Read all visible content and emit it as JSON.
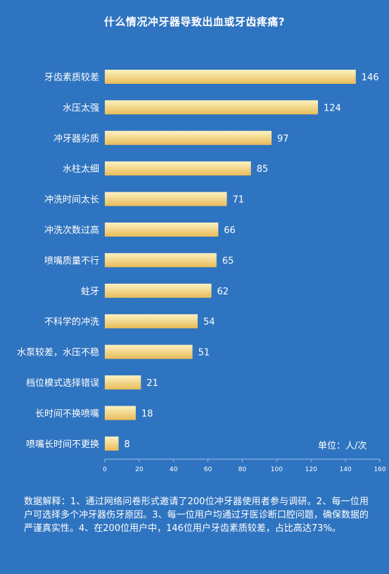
{
  "chart_data": {
    "type": "bar",
    "orientation": "horizontal",
    "title": "什么情况冲牙器导致出血或牙齿疼痛?",
    "categories": [
      "牙齿素质较差",
      "水压太强",
      "冲牙器劣质",
      "水柱太细",
      "冲洗时间太长",
      "冲洗次数过高",
      "喷嘴质量不行",
      "蛀牙",
      "不科学的冲洗",
      "水泵较差，水压不稳",
      "档位模式选择错误",
      "长时间不换喷嘴",
      "喷嘴长时间不更换"
    ],
    "values": [
      146,
      124,
      97,
      85,
      71,
      66,
      65,
      62,
      54,
      51,
      21,
      18,
      8
    ],
    "xlim": [
      0,
      160
    ],
    "xticks": [
      0,
      20,
      40,
      60,
      80,
      100,
      120,
      140,
      160
    ],
    "unit_label": "单位：人/次",
    "bar_color_light": "#fdf2c2",
    "bar_color_dark": "#e8bb58",
    "grid": false
  },
  "colors": {
    "background": "#2f74c0",
    "text": "#ffffff"
  },
  "note": "数据解释：1、通过网络问卷形式邀请了200位冲牙器使用者参与调研。2、每一位用户可选择多个冲牙器伤牙原因。3、每一位用户均通过牙医诊断口腔问题，确保数据的严谨真实性。4、在200位用户中，146位用户牙齿素质较差，占比高达73%。"
}
